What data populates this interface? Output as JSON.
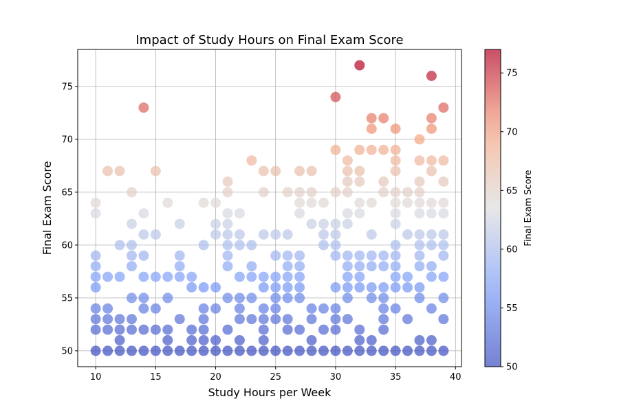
{
  "chart_data": {
    "type": "scatter",
    "title": "Impact of Study Hours on Final Exam Score",
    "xlabel": "Study Hours per Week",
    "ylabel": "Final Exam Score",
    "xlim": [
      8.5,
      40.5
    ],
    "ylim": [
      48.5,
      78.5
    ],
    "xticks": [
      10,
      15,
      20,
      25,
      30,
      35,
      40
    ],
    "yticks": [
      50,
      55,
      60,
      65,
      70,
      75
    ],
    "grid": true,
    "colormap": "coolwarm",
    "color_range": [
      50,
      77
    ],
    "colorbar": {
      "label": "Final Exam Score",
      "ticks": [
        50,
        55,
        60,
        65,
        70,
        75
      ]
    },
    "points": [
      [
        10,
        64
      ],
      [
        10,
        63
      ],
      [
        10,
        59
      ],
      [
        10,
        58
      ],
      [
        10,
        57
      ],
      [
        10,
        56
      ],
      [
        10,
        54
      ],
      [
        10,
        53
      ],
      [
        10,
        52
      ],
      [
        10,
        50
      ],
      [
        11,
        67
      ],
      [
        11,
        57
      ],
      [
        11,
        54
      ],
      [
        11,
        53
      ],
      [
        11,
        52
      ],
      [
        11,
        50
      ],
      [
        12,
        67
      ],
      [
        12,
        60
      ],
      [
        12,
        57
      ],
      [
        12,
        53
      ],
      [
        12,
        52
      ],
      [
        12,
        51
      ],
      [
        12,
        50
      ],
      [
        13,
        65
      ],
      [
        13,
        62
      ],
      [
        13,
        60
      ],
      [
        13,
        59
      ],
      [
        13,
        58
      ],
      [
        13,
        55
      ],
      [
        13,
        53
      ],
      [
        13,
        52
      ],
      [
        13,
        50
      ],
      [
        14,
        73
      ],
      [
        14,
        63
      ],
      [
        14,
        61
      ],
      [
        14,
        59
      ],
      [
        14,
        57
      ],
      [
        14,
        55
      ],
      [
        14,
        54
      ],
      [
        14,
        52
      ],
      [
        14,
        50
      ],
      [
        15,
        67
      ],
      [
        15,
        61
      ],
      [
        15,
        57
      ],
      [
        15,
        54
      ],
      [
        15,
        52
      ],
      [
        15,
        50
      ],
      [
        16,
        64
      ],
      [
        16,
        57
      ],
      [
        16,
        55
      ],
      [
        16,
        52
      ],
      [
        16,
        51
      ],
      [
        16,
        50
      ],
      [
        17,
        62
      ],
      [
        17,
        59
      ],
      [
        17,
        58
      ],
      [
        17,
        57
      ],
      [
        17,
        53
      ],
      [
        17,
        50
      ],
      [
        18,
        57
      ],
      [
        18,
        56
      ],
      [
        18,
        52
      ],
      [
        18,
        51
      ],
      [
        18,
        50
      ],
      [
        19,
        64
      ],
      [
        19,
        60
      ],
      [
        19,
        56
      ],
      [
        19,
        54
      ],
      [
        19,
        53
      ],
      [
        19,
        52
      ],
      [
        19,
        51
      ],
      [
        19,
        50
      ],
      [
        20,
        64
      ],
      [
        20,
        62
      ],
      [
        20,
        61
      ],
      [
        20,
        56
      ],
      [
        20,
        54
      ],
      [
        20,
        51
      ],
      [
        20,
        50
      ],
      [
        21,
        66
      ],
      [
        21,
        65
      ],
      [
        21,
        63
      ],
      [
        21,
        62
      ],
      [
        21,
        61
      ],
      [
        21,
        60
      ],
      [
        21,
        59
      ],
      [
        21,
        58
      ],
      [
        21,
        55
      ],
      [
        21,
        52
      ],
      [
        21,
        50
      ],
      [
        22,
        63
      ],
      [
        22,
        61
      ],
      [
        22,
        60
      ],
      [
        22,
        57
      ],
      [
        22,
        55
      ],
      [
        22,
        54
      ],
      [
        22,
        53
      ],
      [
        22,
        51
      ],
      [
        22,
        50
      ],
      [
        23,
        68
      ],
      [
        23,
        60
      ],
      [
        23,
        58
      ],
      [
        23,
        57
      ],
      [
        23,
        55
      ],
      [
        23,
        53
      ],
      [
        23,
        50
      ],
      [
        24,
        67
      ],
      [
        24,
        65
      ],
      [
        24,
        61
      ],
      [
        24,
        57
      ],
      [
        24,
        56
      ],
      [
        24,
        54
      ],
      [
        24,
        53
      ],
      [
        24,
        52
      ],
      [
        24,
        51
      ],
      [
        24,
        50
      ],
      [
        25,
        67
      ],
      [
        25,
        61
      ],
      [
        25,
        59
      ],
      [
        25,
        57
      ],
      [
        25,
        56
      ],
      [
        25,
        55
      ],
      [
        25,
        54
      ],
      [
        25,
        53
      ],
      [
        25,
        50
      ],
      [
        26,
        65
      ],
      [
        26,
        61
      ],
      [
        26,
        59
      ],
      [
        26,
        58
      ],
      [
        26,
        57
      ],
      [
        26,
        56
      ],
      [
        26,
        55
      ],
      [
        26,
        53
      ],
      [
        26,
        52
      ],
      [
        26,
        50
      ],
      [
        27,
        67
      ],
      [
        27,
        65
      ],
      [
        27,
        64
      ],
      [
        27,
        63
      ],
      [
        27,
        59
      ],
      [
        27,
        58
      ],
      [
        27,
        57
      ],
      [
        27,
        56
      ],
      [
        27,
        55
      ],
      [
        27,
        52
      ],
      [
        27,
        50
      ],
      [
        28,
        67
      ],
      [
        28,
        65
      ],
      [
        28,
        64
      ],
      [
        28,
        62
      ],
      [
        28,
        54
      ],
      [
        28,
        53
      ],
      [
        28,
        51
      ],
      [
        28,
        50
      ],
      [
        29,
        64
      ],
      [
        29,
        62
      ],
      [
        29,
        61
      ],
      [
        29,
        60
      ],
      [
        29,
        54
      ],
      [
        29,
        52
      ],
      [
        29,
        50
      ],
      [
        30,
        74
      ],
      [
        30,
        69
      ],
      [
        30,
        65
      ],
      [
        30,
        62
      ],
      [
        30,
        61
      ],
      [
        30,
        60
      ],
      [
        30,
        59
      ],
      [
        30,
        56
      ],
      [
        30,
        54
      ],
      [
        30,
        53
      ],
      [
        30,
        52
      ],
      [
        30,
        50
      ],
      [
        31,
        68
      ],
      [
        31,
        67
      ],
      [
        31,
        66
      ],
      [
        31,
        65
      ],
      [
        31,
        63
      ],
      [
        31,
        62
      ],
      [
        31,
        59
      ],
      [
        31,
        58
      ],
      [
        31,
        57
      ],
      [
        31,
        56
      ],
      [
        31,
        55
      ],
      [
        31,
        53
      ],
      [
        31,
        50
      ],
      [
        32,
        77
      ],
      [
        32,
        69
      ],
      [
        32,
        67
      ],
      [
        32,
        66
      ],
      [
        32,
        64
      ],
      [
        32,
        63
      ],
      [
        32,
        59
      ],
      [
        32,
        58
      ],
      [
        32,
        57
      ],
      [
        32,
        56
      ],
      [
        32,
        52
      ],
      [
        32,
        51
      ],
      [
        32,
        50
      ],
      [
        33,
        72
      ],
      [
        33,
        71
      ],
      [
        33,
        69
      ],
      [
        33,
        64
      ],
      [
        33,
        61
      ],
      [
        33,
        59
      ],
      [
        33,
        58
      ],
      [
        33,
        56
      ],
      [
        33,
        55
      ],
      [
        33,
        51
      ],
      [
        33,
        50
      ],
      [
        34,
        72
      ],
      [
        34,
        69
      ],
      [
        34,
        66
      ],
      [
        34,
        65
      ],
      [
        34,
        59
      ],
      [
        34,
        58
      ],
      [
        34,
        56
      ],
      [
        34,
        55
      ],
      [
        34,
        54
      ],
      [
        34,
        53
      ],
      [
        34,
        52
      ],
      [
        34,
        50
      ],
      [
        35,
        71
      ],
      [
        35,
        69
      ],
      [
        35,
        68
      ],
      [
        35,
        67
      ],
      [
        35,
        65
      ],
      [
        35,
        64
      ],
      [
        35,
        63
      ],
      [
        35,
        62
      ],
      [
        35,
        60
      ],
      [
        35,
        59
      ],
      [
        35,
        58
      ],
      [
        35,
        57
      ],
      [
        35,
        56
      ],
      [
        35,
        54
      ],
      [
        35,
        50
      ],
      [
        36,
        65
      ],
      [
        36,
        64
      ],
      [
        36,
        61
      ],
      [
        36,
        57
      ],
      [
        36,
        56
      ],
      [
        36,
        53
      ],
      [
        36,
        50
      ],
      [
        37,
        70
      ],
      [
        37,
        68
      ],
      [
        37,
        66
      ],
      [
        37,
        65
      ],
      [
        37,
        64
      ],
      [
        37,
        63
      ],
      [
        37,
        61
      ],
      [
        37,
        60
      ],
      [
        37,
        59
      ],
      [
        37,
        58
      ],
      [
        37,
        56
      ],
      [
        37,
        55
      ],
      [
        37,
        51
      ],
      [
        37,
        50
      ],
      [
        38,
        76
      ],
      [
        38,
        72
      ],
      [
        38,
        71
      ],
      [
        38,
        68
      ],
      [
        38,
        67
      ],
      [
        38,
        64
      ],
      [
        38,
        63
      ],
      [
        38,
        61
      ],
      [
        38,
        60
      ],
      [
        38,
        58
      ],
      [
        38,
        57
      ],
      [
        38,
        54
      ],
      [
        38,
        51
      ],
      [
        38,
        50
      ],
      [
        39,
        73
      ],
      [
        39,
        68
      ],
      [
        39,
        66
      ],
      [
        39,
        64
      ],
      [
        39,
        63
      ],
      [
        39,
        61
      ],
      [
        39,
        60
      ],
      [
        39,
        59
      ],
      [
        39,
        57
      ],
      [
        39,
        55
      ],
      [
        39,
        53
      ],
      [
        39,
        50
      ]
    ]
  }
}
